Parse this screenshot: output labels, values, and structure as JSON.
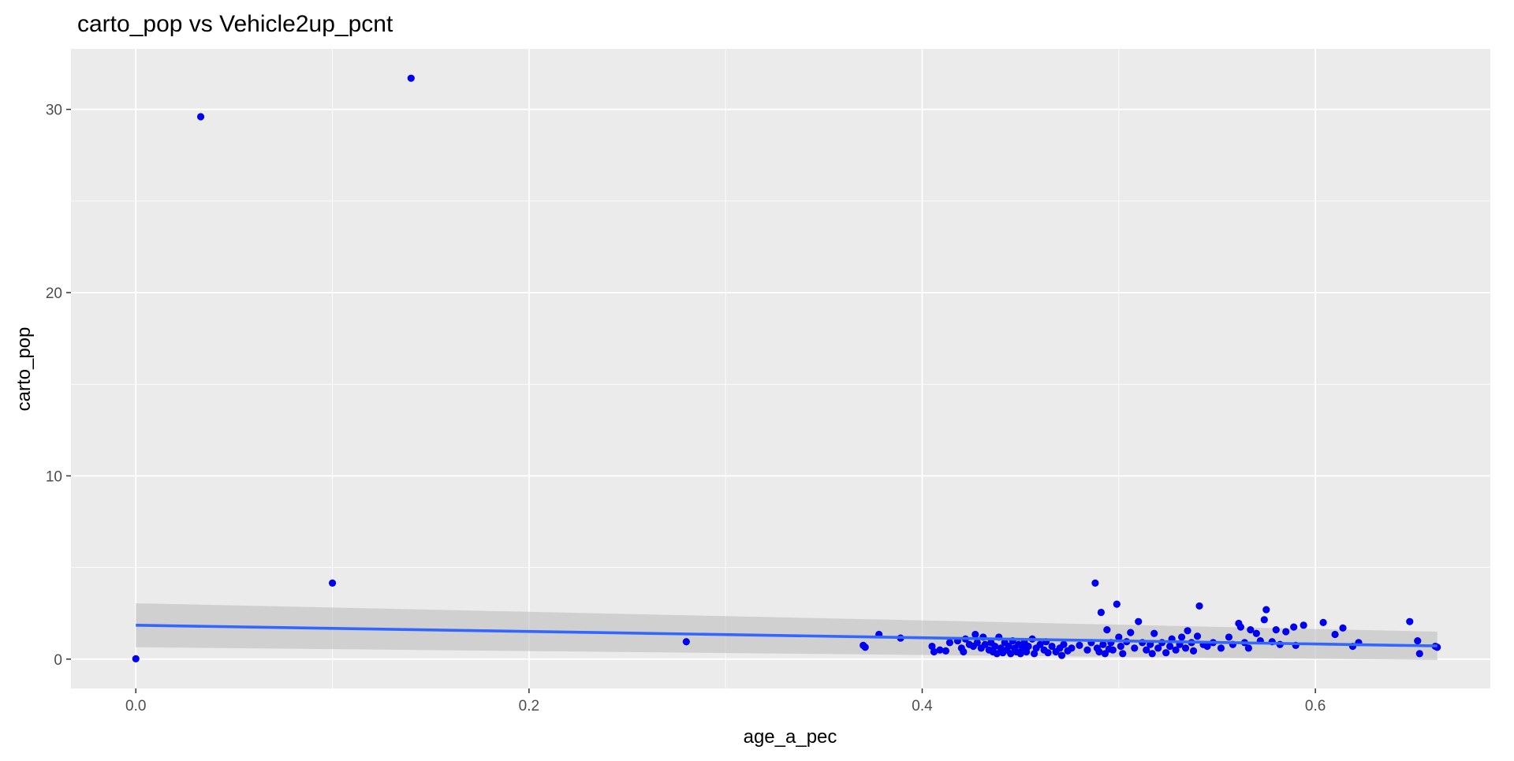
{
  "chart_data": {
    "type": "scatter",
    "title": "carto_pop vs Vehicle2up_pcnt",
    "xlabel": "age_a_pec",
    "ylabel": "carto_pop",
    "xlim": [
      -0.033,
      0.689
    ],
    "ylim": [
      -1.6,
      33.3
    ],
    "x_ticks": [
      0.0,
      0.2,
      0.4,
      0.6
    ],
    "x_tick_labels": [
      "0.0",
      "0.2",
      "0.4",
      "0.6"
    ],
    "y_ticks": [
      0,
      10,
      20,
      30
    ],
    "y_tick_labels": [
      "0",
      "10",
      "20",
      "30"
    ],
    "x_minor_ticks": [
      0.1,
      0.3,
      0.5
    ],
    "y_minor_ticks": [
      5,
      15,
      25
    ],
    "grid": true,
    "legend": "none",
    "colors": {
      "panel": "#ebebeb",
      "grid": "#ffffff",
      "points": "#0000ee",
      "smooth_line": "#3366ff",
      "ribbon": "#bebebe"
    },
    "series": [
      {
        "points": [
          [
            0.0,
            0.02
          ],
          [
            0.033,
            29.6
          ],
          [
            0.14,
            31.7
          ],
          [
            0.1,
            4.15
          ],
          [
            0.28,
            0.95
          ],
          [
            0.37,
            0.75
          ],
          [
            0.371,
            0.65
          ],
          [
            0.378,
            1.35
          ],
          [
            0.389,
            1.15
          ],
          [
            0.405,
            0.7
          ],
          [
            0.406,
            0.4
          ],
          [
            0.409,
            0.5
          ],
          [
            0.412,
            0.45
          ],
          [
            0.414,
            0.9
          ],
          [
            0.418,
            1.0
          ],
          [
            0.42,
            0.6
          ],
          [
            0.421,
            0.4
          ],
          [
            0.422,
            1.1
          ],
          [
            0.424,
            0.8
          ],
          [
            0.426,
            0.7
          ],
          [
            0.427,
            1.35
          ],
          [
            0.428,
            0.9
          ],
          [
            0.43,
            0.6
          ],
          [
            0.431,
            1.2
          ],
          [
            0.432,
            0.8
          ],
          [
            0.434,
            0.5
          ],
          [
            0.435,
            0.9
          ],
          [
            0.436,
            0.4
          ],
          [
            0.437,
            0.7
          ],
          [
            0.438,
            0.3
          ],
          [
            0.439,
            1.2
          ],
          [
            0.44,
            0.6
          ],
          [
            0.441,
            0.35
          ],
          [
            0.442,
            0.9
          ],
          [
            0.443,
            0.5
          ],
          [
            0.444,
            0.7
          ],
          [
            0.445,
            0.3
          ],
          [
            0.446,
            1.0
          ],
          [
            0.447,
            0.6
          ],
          [
            0.448,
            0.4
          ],
          [
            0.449,
            0.8
          ],
          [
            0.45,
            0.3
          ],
          [
            0.451,
            0.55
          ],
          [
            0.452,
            0.9
          ],
          [
            0.453,
            0.4
          ],
          [
            0.454,
            0.7
          ],
          [
            0.456,
            1.1
          ],
          [
            0.457,
            0.3
          ],
          [
            0.458,
            0.6
          ],
          [
            0.46,
            0.8
          ],
          [
            0.462,
            0.5
          ],
          [
            0.463,
            0.95
          ],
          [
            0.464,
            0.35
          ],
          [
            0.466,
            0.7
          ],
          [
            0.468,
            0.4
          ],
          [
            0.47,
            0.6
          ],
          [
            0.471,
            0.2
          ],
          [
            0.472,
            0.8
          ],
          [
            0.474,
            0.45
          ],
          [
            0.476,
            0.6
          ],
          [
            0.48,
            0.75
          ],
          [
            0.484,
            0.5
          ],
          [
            0.486,
            0.9
          ],
          [
            0.488,
            4.15
          ],
          [
            0.489,
            0.6
          ],
          [
            0.49,
            0.4
          ],
          [
            0.491,
            2.55
          ],
          [
            0.492,
            0.8
          ],
          [
            0.493,
            0.3
          ],
          [
            0.494,
            1.6
          ],
          [
            0.495,
            0.55
          ],
          [
            0.496,
            0.9
          ],
          [
            0.497,
            0.5
          ],
          [
            0.499,
            3.0
          ],
          [
            0.5,
            1.2
          ],
          [
            0.501,
            0.7
          ],
          [
            0.502,
            0.3
          ],
          [
            0.504,
            0.95
          ],
          [
            0.506,
            1.45
          ],
          [
            0.508,
            0.6
          ],
          [
            0.51,
            2.05
          ],
          [
            0.512,
            0.9
          ],
          [
            0.514,
            0.5
          ],
          [
            0.516,
            0.8
          ],
          [
            0.517,
            0.3
          ],
          [
            0.518,
            1.4
          ],
          [
            0.52,
            0.6
          ],
          [
            0.522,
            0.9
          ],
          [
            0.524,
            0.35
          ],
          [
            0.526,
            0.7
          ],
          [
            0.527,
            1.1
          ],
          [
            0.529,
            0.5
          ],
          [
            0.531,
            0.8
          ],
          [
            0.532,
            1.2
          ],
          [
            0.534,
            0.6
          ],
          [
            0.535,
            1.55
          ],
          [
            0.537,
            0.9
          ],
          [
            0.538,
            0.45
          ],
          [
            0.54,
            1.25
          ],
          [
            0.541,
            2.9
          ],
          [
            0.543,
            0.8
          ],
          [
            0.545,
            0.7
          ],
          [
            0.548,
            0.9
          ],
          [
            0.552,
            0.6
          ],
          [
            0.556,
            1.2
          ],
          [
            0.558,
            0.8
          ],
          [
            0.561,
            1.95
          ],
          [
            0.562,
            1.75
          ],
          [
            0.564,
            0.9
          ],
          [
            0.566,
            0.6
          ],
          [
            0.567,
            1.6
          ],
          [
            0.57,
            1.4
          ],
          [
            0.572,
            1.0
          ],
          [
            0.574,
            2.15
          ],
          [
            0.575,
            2.7
          ],
          [
            0.578,
            0.95
          ],
          [
            0.58,
            1.6
          ],
          [
            0.582,
            0.8
          ],
          [
            0.585,
            1.5
          ],
          [
            0.589,
            1.75
          ],
          [
            0.59,
            0.75
          ],
          [
            0.594,
            1.85
          ],
          [
            0.604,
            2.0
          ],
          [
            0.61,
            1.35
          ],
          [
            0.614,
            1.7
          ],
          [
            0.619,
            0.7
          ],
          [
            0.622,
            0.9
          ],
          [
            0.648,
            2.05
          ],
          [
            0.652,
            1.0
          ],
          [
            0.653,
            0.3
          ],
          [
            0.661,
            0.7
          ],
          [
            0.662,
            0.65
          ]
        ]
      }
    ],
    "smooth": {
      "method": "lm",
      "x_range": [
        0.0,
        0.662
      ],
      "fit": [
        1.85,
        0.72
      ],
      "ribbon_lower": [
        0.65,
        -0.05
      ],
      "ribbon_upper": [
        3.05,
        1.5
      ]
    }
  }
}
